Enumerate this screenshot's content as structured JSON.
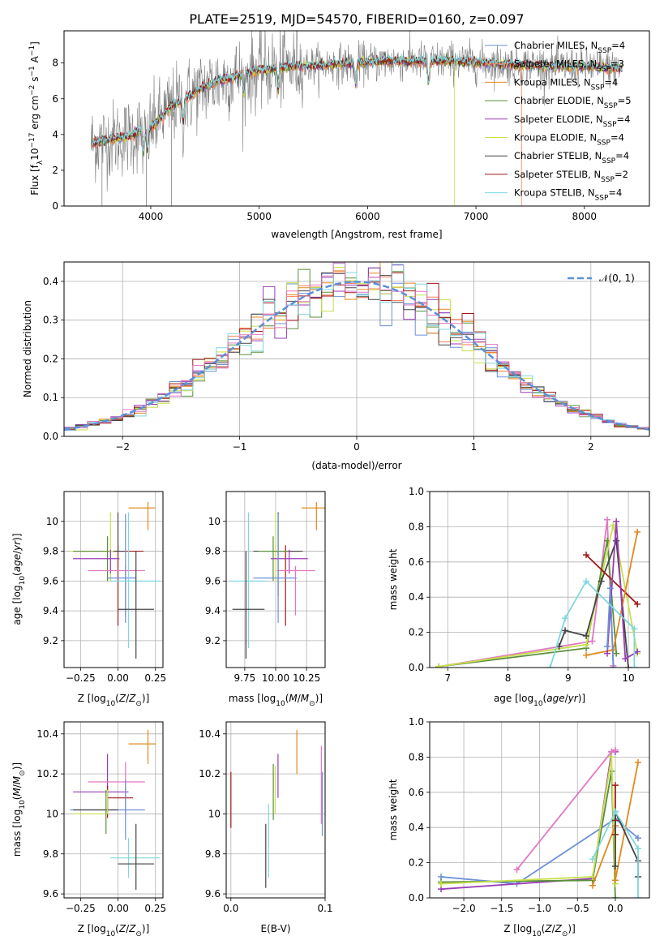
{
  "figure": {
    "title": "PLATE=2519, MJD=54570, FIBERID=0160, z=0.097"
  },
  "chart_data": [
    {
      "id": "spectrum",
      "type": "line",
      "title": "PLATE=2519, MJD=54570, FIBERID=0160, z=0.097",
      "xlabel": "wavelength [Angstrom, rest frame]",
      "ylabel": "Flux [f_λ 10^-17 erg cm^-2 s^-1 A^-1]",
      "xlim": [
        3200,
        8600
      ],
      "ylim": [
        0,
        9.8
      ],
      "xticks": [
        4000,
        5000,
        6000,
        7000,
        8000
      ],
      "yticks": [
        0,
        2,
        4,
        6,
        8
      ],
      "grid": false,
      "legend_position": "right",
      "legend": [
        {
          "label": "Chabrier MILES, N_SSP=4",
          "color": "#6b8fd6"
        },
        {
          "label": "Salpeter MILES, N_SSP=3",
          "color": "#ff7f50"
        },
        {
          "label": "Kroupa MILES, N_SSP=4",
          "color": "#e08a1e"
        },
        {
          "label": "Chabrier ELODIE, N_SSP=5",
          "color": "#5a8f3a"
        },
        {
          "label": "Salpeter ELODIE, N_SSP=4",
          "color": "#9a3db8"
        },
        {
          "label": "Kroupa ELODIE, N_SSP=4",
          "color": "#c8e04a"
        },
        {
          "label": "Chabrier STELIB, N_SSP=4",
          "color": "#444444"
        },
        {
          "label": "Salpeter STELIB, N_SSP=2",
          "color": "#a01818"
        },
        {
          "label": "Kroupa STELIB, N_SSP=4",
          "color": "#7fd7de"
        }
      ],
      "data_color": "#7f7f7f",
      "data_x_range": [
        3450,
        8350
      ],
      "continuum": {
        "x": [
          3450,
          3600,
          3800,
          4000,
          4200,
          4500,
          4800,
          5000,
          5300,
          5600,
          5900,
          6200,
          6500,
          6800,
          7100,
          7400,
          7700,
          8000,
          8350
        ],
        "y": [
          3.5,
          3.7,
          3.9,
          4.4,
          5.6,
          6.7,
          7.3,
          7.6,
          7.8,
          7.9,
          8.0,
          8.1,
          8.1,
          8.1,
          8.0,
          7.9,
          7.8,
          7.8,
          7.7
        ]
      },
      "absorption_features": [
        3934,
        3969,
        4300,
        4861,
        5175,
        5890,
        6563,
        8498,
        8542,
        8662
      ]
    },
    {
      "id": "residuals",
      "type": "histogram",
      "xlabel": "(data-model)/error",
      "ylabel": "Normed distribution",
      "xlim": [
        -2.5,
        2.5
      ],
      "ylim": [
        0,
        0.45
      ],
      "xticks": [
        -2,
        -1,
        0,
        1,
        2
      ],
      "yticks": [
        0.0,
        0.1,
        0.2,
        0.3,
        0.4
      ],
      "grid": true,
      "legend_position": "top-right",
      "reference_curve": {
        "label": "𝒩(0, 1)",
        "color": "#5b8fd9",
        "style": "dashed"
      },
      "bin_width": 0.1,
      "series_colors": [
        "#6b8fd6",
        "#ff7f50",
        "#e08a1e",
        "#5a8f3a",
        "#9a3db8",
        "#c8e04a",
        "#444444",
        "#a01818",
        "#7fd7de",
        "#e377c2"
      ]
    },
    {
      "id": "Z-age",
      "type": "errorbar",
      "xlabel": "Z [log10(Z/Z☉)]",
      "ylabel": "age [log10(age/yr)]",
      "xlim": [
        -0.36,
        0.3
      ],
      "ylim": [
        9.02,
        10.2
      ],
      "xticks": [
        -0.25,
        0.0,
        0.25
      ],
      "xticklabels": [
        "−0.25",
        "0.00",
        "0.25"
      ],
      "yticks": [
        9.2,
        9.4,
        9.6,
        9.8,
        10.0
      ],
      "grid": true,
      "points": [
        {
          "color": "#e08a1e",
          "x": 0.2,
          "xerr": [
            0.13,
            0.05
          ],
          "y": 10.09,
          "yerr": [
            0.15,
            0.04
          ]
        },
        {
          "color": "#a01818",
          "x": 0.0,
          "xerr": [
            0.07,
            0.17
          ],
          "y": 9.8,
          "yerr": [
            0.5,
            0.04
          ]
        },
        {
          "color": "#444444",
          "x": 0.0,
          "xerr": [
            0.3,
            0.05
          ],
          "y": 9.8,
          "yerr": [
            0.0,
            0.26
          ]
        },
        {
          "color": "#c8e04a",
          "x": -0.05,
          "xerr": [
            0.27,
            0.02
          ],
          "y": 9.8,
          "yerr": [
            0.2,
            0.26
          ]
        },
        {
          "color": "#5a8f3a",
          "x": -0.07,
          "xerr": [
            0.23,
            0.01
          ],
          "y": 9.8,
          "yerr": [
            0.2,
            0.1
          ]
        },
        {
          "color": "#9a3db8",
          "x": -0.05,
          "xerr": [
            0.25,
            0.06
          ],
          "y": 9.75,
          "yerr": [
            0.1,
            0.06
          ]
        },
        {
          "color": "#e377c2",
          "x": 0.05,
          "xerr": [
            0.25,
            0.13
          ],
          "y": 9.67,
          "yerr": [
            0.3,
            0.03
          ]
        },
        {
          "color": "#6b8fd6",
          "x": 0.05,
          "xerr": [
            0.12,
            0.07
          ],
          "y": 9.62,
          "yerr": [
            0.3,
            0.43
          ]
        },
        {
          "color": "#7fd7de",
          "x": 0.07,
          "xerr": [
            0.12,
            0.21
          ],
          "y": 9.6,
          "yerr": [
            0.45,
            0.46
          ]
        },
        {
          "color": "#444444",
          "x": 0.12,
          "xerr": [
            0.12,
            0.12
          ],
          "y": 9.41,
          "yerr": [
            0.33,
            0.39
          ]
        }
      ]
    },
    {
      "id": "mass-age",
      "type": "errorbar",
      "xlabel": "mass [log10(M/M☉)]",
      "ylabel": "",
      "xlim": [
        9.6,
        10.4
      ],
      "ylim": [
        9.02,
        10.2
      ],
      "xticks": [
        9.75,
        10.0,
        10.25
      ],
      "xticklabels": [
        "9.75",
        "10.00",
        "10.25"
      ],
      "yticks": [
        9.2,
        9.4,
        9.6,
        9.8,
        10.0
      ],
      "grid": true,
      "points": [
        {
          "color": "#e08a1e",
          "x": 10.33,
          "xerr": [
            0.12,
            0.12
          ],
          "y": 10.09,
          "yerr": [
            0.15,
            0.04
          ]
        },
        {
          "color": "#a01818",
          "x": 10.08,
          "xerr": [
            0.08,
            0.12
          ],
          "y": 9.8,
          "yerr": [
            0.5,
            0.04
          ]
        },
        {
          "color": "#444444",
          "x": 10.02,
          "xerr": [
            0.2,
            0.2
          ],
          "y": 9.8,
          "yerr": [
            0.3,
            0.26
          ]
        },
        {
          "color": "#c8e04a",
          "x": 10.0,
          "xerr": [
            0.12,
            0.1
          ],
          "y": 9.8,
          "yerr": [
            0.2,
            0.26
          ]
        },
        {
          "color": "#5a8f3a",
          "x": 9.98,
          "xerr": [
            0.12,
            0.12
          ],
          "y": 9.8,
          "yerr": [
            0.2,
            0.1
          ]
        },
        {
          "color": "#9a3db8",
          "x": 10.11,
          "xerr": [
            0.15,
            0.15
          ],
          "y": 9.75,
          "yerr": [
            0.1,
            0.06
          ]
        },
        {
          "color": "#e377c2",
          "x": 10.16,
          "xerr": [
            0.15,
            0.16
          ],
          "y": 9.67,
          "yerr": [
            0.3,
            0.03
          ]
        },
        {
          "color": "#6b8fd6",
          "x": 10.02,
          "xerr": [
            0.2,
            0.15
          ],
          "y": 9.62,
          "yerr": [
            0.3,
            0.43
          ]
        },
        {
          "color": "#7fd7de",
          "x": 9.78,
          "xerr": [
            0.15,
            0.15
          ],
          "y": 9.6,
          "yerr": [
            0.45,
            0.46
          ]
        },
        {
          "color": "#444444",
          "x": 9.76,
          "xerr": [
            0.11,
            0.15
          ],
          "y": 9.41,
          "yerr": [
            0.33,
            0.39
          ]
        }
      ]
    },
    {
      "id": "age-weight",
      "type": "line",
      "xlabel": "age [log10(age/yr)]",
      "ylabel": "mass weight",
      "xlim": [
        6.7,
        10.35
      ],
      "ylim": [
        0,
        1.0
      ],
      "xticks": [
        7,
        8,
        9,
        10
      ],
      "yticks": [
        0.0,
        0.2,
        0.4,
        0.6,
        0.8,
        1.0
      ],
      "grid": true,
      "marker": "+",
      "series": [
        {
          "color": "#e377c2",
          "x": [
            6.85,
            9.4,
            9.65,
            9.75
          ],
          "y": [
            0.005,
            0.15,
            0.84,
            0.01
          ]
        },
        {
          "color": "#5a8f3a",
          "x": [
            6.85,
            9.3,
            9.65,
            9.8
          ],
          "y": [
            0.005,
            0.11,
            0.72,
            0.08
          ]
        },
        {
          "color": "#c8e04a",
          "x": [
            6.85,
            9.3,
            9.75,
            10.15
          ],
          "y": [
            0.005,
            0.13,
            0.81,
            0.08
          ]
        },
        {
          "color": "#444444",
          "x": [
            8.85,
            8.95,
            9.3,
            9.55,
            9.8,
            10.0
          ],
          "y": [
            0.12,
            0.21,
            0.18,
            0.49,
            0.72,
            0.0
          ]
        },
        {
          "color": "#a01818",
          "x": [
            9.3,
            10.15
          ],
          "y": [
            0.64,
            0.36
          ]
        },
        {
          "color": "#e08a1e",
          "x": [
            9.3,
            9.75,
            10.15
          ],
          "y": [
            0.07,
            0.1,
            0.77
          ]
        },
        {
          "color": "#9a3db8",
          "x": [
            9.65,
            9.8,
            9.95,
            10.15
          ],
          "y": [
            0.08,
            0.83,
            0.05,
            0.09
          ]
        },
        {
          "color": "#6b8fd6",
          "x": [
            9.65,
            9.7,
            9.75
          ],
          "y": [
            0.12,
            0.45,
            0.0
          ]
        },
        {
          "color": "#7fd7de",
          "x": [
            8.7,
            8.95,
            9.3,
            10.1,
            10.1
          ],
          "y": [
            0.0,
            0.28,
            0.49,
            0.22,
            0.0
          ]
        }
      ]
    },
    {
      "id": "Z-mass",
      "type": "errorbar",
      "xlabel": "Z [log10(Z/Z☉)]",
      "ylabel": "mass [log10(M/M☉)]",
      "xlim": [
        -0.36,
        0.3
      ],
      "ylim": [
        9.58,
        10.46
      ],
      "xticks": [
        -0.25,
        0.0,
        0.25
      ],
      "xticklabels": [
        "−0.25",
        "0.00",
        "0.25"
      ],
      "yticks": [
        9.6,
        9.8,
        10.0,
        10.2,
        10.4
      ],
      "grid": true,
      "points": [
        {
          "color": "#e08a1e",
          "x": 0.2,
          "xerr": [
            0.13,
            0.05
          ],
          "y": 10.35,
          "yerr": [
            0.1,
            0.07
          ]
        },
        {
          "color": "#9a3db8",
          "x": -0.07,
          "xerr": [
            0.23,
            0.14
          ],
          "y": 10.11,
          "yerr": [
            0.1,
            0.19
          ]
        },
        {
          "color": "#e377c2",
          "x": 0.05,
          "xerr": [
            0.25,
            0.13
          ],
          "y": 10.16,
          "yerr": [
            0.16,
            0.1
          ]
        },
        {
          "color": "#a01818",
          "x": -0.07,
          "xerr": [
            0.0,
            0.17
          ],
          "y": 10.08,
          "yerr": [
            0.1,
            0.06
          ]
        },
        {
          "color": "#6b8fd6",
          "x": 0.05,
          "xerr": [
            0.37,
            0.13
          ],
          "y": 10.02,
          "yerr": [
            0.15,
            0.15
          ]
        },
        {
          "color": "#444444",
          "x": 0.0,
          "xerr": [
            0.3,
            0.0
          ],
          "y": 10.02,
          "yerr": [
            0.0,
            0.0
          ]
        },
        {
          "color": "#c8e04a",
          "x": -0.07,
          "xerr": [
            0.23,
            0.0
          ],
          "y": 10.0,
          "yerr": [
            0.0,
            0.12
          ]
        },
        {
          "color": "#5a8f3a",
          "x": -0.08,
          "xerr": [
            0.0,
            0.0
          ],
          "y": 10.0,
          "yerr": [
            0.1,
            0.12
          ]
        },
        {
          "color": "#7fd7de",
          "x": 0.07,
          "xerr": [
            0.12,
            0.21
          ],
          "y": 9.78,
          "yerr": [
            0.1,
            0.1
          ]
        },
        {
          "color": "#444444",
          "x": 0.12,
          "xerr": [
            0.12,
            0.12
          ],
          "y": 9.75,
          "yerr": [
            0.13,
            0.2
          ]
        }
      ]
    },
    {
      "id": "EBV-mass",
      "type": "errorbar",
      "xlabel": "E(B-V)",
      "ylabel": "",
      "xlim": [
        -0.005,
        0.1
      ],
      "ylim": [
        9.58,
        10.46
      ],
      "xticks": [
        0.0,
        0.1
      ],
      "xticklabels": [
        "0.0",
        "0.1"
      ],
      "yticks": [
        9.6,
        9.8,
        10.0,
        10.2,
        10.4
      ],
      "grid": true,
      "points": [
        {
          "color": "#a01818",
          "x": 0.0,
          "xerr": [
            0,
            0
          ],
          "y": 10.05,
          "yerr": [
            0.12,
            0.16
          ]
        },
        {
          "color": "#444444",
          "x": 0.037,
          "xerr": [
            0,
            0
          ],
          "y": 9.78,
          "yerr": [
            0.15,
            0.17
          ]
        },
        {
          "color": "#7fd7de",
          "x": 0.04,
          "xerr": [
            0,
            0
          ],
          "y": 9.85,
          "yerr": [
            0.17,
            0.2
          ]
        },
        {
          "color": "#5a8f3a",
          "x": 0.045,
          "xerr": [
            0,
            0
          ],
          "y": 10.05,
          "yerr": [
            0.08,
            0.2
          ]
        },
        {
          "color": "#c8e04a",
          "x": 0.047,
          "xerr": [
            0,
            0
          ],
          "y": 10.1,
          "yerr": [
            0.1,
            0.14
          ]
        },
        {
          "color": "#9a3db8",
          "x": 0.05,
          "xerr": [
            0,
            0
          ],
          "y": 10.18,
          "yerr": [
            0.1,
            0.12
          ]
        },
        {
          "color": "#e08a1e",
          "x": 0.07,
          "xerr": [
            0,
            0
          ],
          "y": 10.3,
          "yerr": [
            0.1,
            0.12
          ]
        },
        {
          "color": "#e377c2",
          "x": 0.096,
          "xerr": [
            0,
            0
          ],
          "y": 10.1,
          "yerr": [
            0.15,
            0.24
          ]
        },
        {
          "color": "#6b8fd6",
          "x": 0.097,
          "xerr": [
            0,
            0
          ],
          "y": 10.05,
          "yerr": [
            0.16,
            0.16
          ]
        }
      ]
    },
    {
      "id": "Z-weight",
      "type": "line",
      "xlabel": "Z [log10(Z/Z☉)]",
      "ylabel": "mass weight",
      "xlim": [
        -2.45,
        0.45
      ],
      "ylim": [
        0,
        1.0
      ],
      "xticks": [
        -2.0,
        -1.5,
        -1.0,
        -0.5,
        0.0
      ],
      "xticklabels": [
        "−2.0",
        "−1.5",
        "−1.0",
        "−0.5",
        "0.0"
      ],
      "yticks": [
        0.0,
        0.2,
        0.4,
        0.6,
        0.8,
        1.0
      ],
      "grid": true,
      "marker": "+",
      "series": [
        {
          "color": "#6b8fd6",
          "x": [
            -2.3,
            -1.3,
            0.0,
            0.3
          ],
          "y": [
            0.12,
            0.08,
            0.45,
            0.34
          ]
        },
        {
          "color": "#9a3db8",
          "x": [
            -2.3,
            -0.3,
            -0.05,
            0.0
          ],
          "y": [
            0.05,
            0.11,
            0.83,
            0.83
          ]
        },
        {
          "color": "#e377c2",
          "x": [
            -1.3,
            -0.05,
            0.0
          ],
          "y": [
            0.16,
            0.83,
            0.84
          ]
        },
        {
          "color": "#5a8f3a",
          "x": [
            -2.3,
            -0.3,
            -0.05,
            0.0
          ],
          "y": [
            0.09,
            0.1,
            0.72,
            0.0
          ]
        },
        {
          "color": "#c8e04a",
          "x": [
            -2.3,
            -0.3,
            -0.05,
            0.0
          ],
          "y": [
            0.08,
            0.12,
            0.8,
            0.08
          ]
        },
        {
          "color": "#e08a1e",
          "x": [
            -0.3,
            0.0,
            0.0,
            0.3
          ],
          "y": [
            0.07,
            0.41,
            0.1,
            0.77
          ]
        },
        {
          "color": "#a01818",
          "x": [
            0.0,
            0.0,
            0.0
          ],
          "y": [
            0.64,
            0.36,
            0.44
          ]
        },
        {
          "color": "#444444",
          "x": [
            0.0,
            0.0,
            0.3,
            0.3
          ],
          "y": [
            0.18,
            0.49,
            0.21,
            0.12
          ]
        },
        {
          "color": "#7fd7de",
          "x": [
            -0.3,
            0.0,
            0.3,
            0.3
          ],
          "y": [
            0.22,
            0.49,
            0.28,
            0.0
          ]
        }
      ]
    }
  ]
}
